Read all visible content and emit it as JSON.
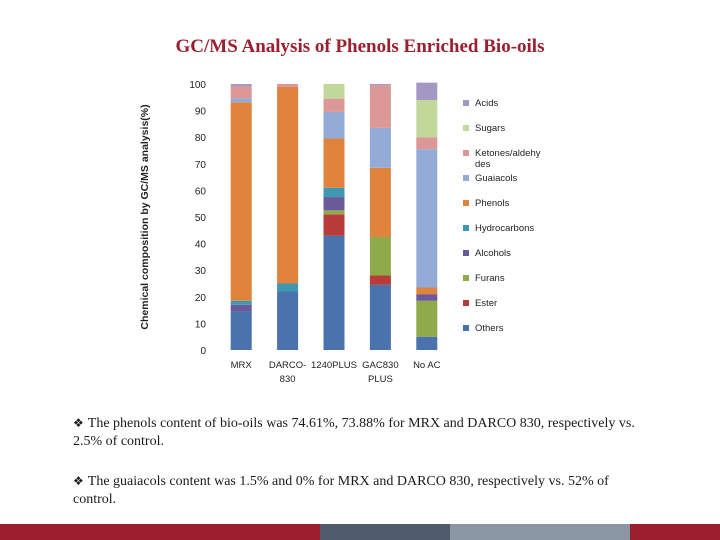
{
  "slide": {
    "title": "GC/MS Analysis of Phenols Enriched Bio-oils",
    "bullets": [
      "The phenols content of bio-oils was 74.61%, 73.88% for MRX and DARCO 830, respectively  vs. 2.5% of control.",
      "The guaiacols content was 1.5% and 0% for MRX and DARCO 830, respectively  vs. 52% of control."
    ],
    "bullet_symbol": "❖"
  },
  "chart_data": {
    "type": "bar",
    "stacked": true,
    "title": "",
    "xlabel": "",
    "ylabel": "Chemical composition by GC/MS analysis(%)",
    "ylim": [
      0,
      100
    ],
    "yticks": [
      0,
      10,
      20,
      30,
      40,
      50,
      60,
      70,
      80,
      90,
      100
    ],
    "categories": [
      "MRX",
      "DARCO- 830",
      "1240PLUS",
      "GAC830 PLUS",
      "No AC"
    ],
    "category_lines": [
      [
        "MRX"
      ],
      [
        "DARCO-",
        "830"
      ],
      [
        "1240PLUS"
      ],
      [
        "GAC830",
        "PLUS"
      ],
      [
        "No AC"
      ]
    ],
    "series": [
      {
        "name": "Others",
        "color": "#4a72ac",
        "values": [
          14.5,
          22,
          43,
          24.5,
          5
        ]
      },
      {
        "name": "Ester",
        "color": "#b73c3a",
        "values": [
          0,
          0,
          8,
          3.5,
          0
        ]
      },
      {
        "name": "Furans",
        "color": "#8faa48",
        "values": [
          0,
          0,
          1.5,
          14.5,
          13.5
        ]
      },
      {
        "name": "Alcohols",
        "color": "#6b5a9a",
        "values": [
          2.5,
          0,
          5,
          0,
          2.5
        ]
      },
      {
        "name": "Hydrocarbons",
        "color": "#3d98b4",
        "values": [
          1.5,
          3,
          3.5,
          0,
          0
        ]
      },
      {
        "name": "Phenols",
        "color": "#e0833d",
        "values": [
          74.6,
          73.9,
          18.5,
          26,
          2.5
        ]
      },
      {
        "name": "Guaiacols",
        "color": "#93abd6",
        "values": [
          1.5,
          0,
          10,
          15,
          52
        ]
      },
      {
        "name": "Ketones/aldehydes",
        "color": "#db9896",
        "values": [
          4.5,
          1.1,
          5,
          16,
          4.5
        ]
      },
      {
        "name": "Sugars",
        "color": "#c2d89b",
        "values": [
          0,
          0,
          5.5,
          0,
          14
        ]
      },
      {
        "name": "Acids",
        "color": "#a597c3",
        "values": [
          0.9,
          0,
          0,
          0.5,
          6.5
        ]
      }
    ],
    "legend": [
      {
        "label_lines": [
          "Acids"
        ],
        "color": "#a597c3"
      },
      {
        "label_lines": [
          "Sugars"
        ],
        "color": "#c2d89b"
      },
      {
        "label_lines": [
          "Ketones/aldehy",
          "des"
        ],
        "color": "#db9896"
      },
      {
        "label_lines": [
          "Guaiacols"
        ],
        "color": "#93abd6"
      },
      {
        "label_lines": [
          "Phenols"
        ],
        "color": "#e0833d"
      },
      {
        "label_lines": [
          "Hydrocarbons"
        ],
        "color": "#3d98b4"
      },
      {
        "label_lines": [
          "Alcohols"
        ],
        "color": "#6b5a9a"
      },
      {
        "label_lines": [
          "Furans"
        ],
        "color": "#8faa48"
      },
      {
        "label_lines": [
          "Ester"
        ],
        "color": "#b73c3a"
      },
      {
        "label_lines": [
          "Others"
        ],
        "color": "#4a72ac"
      }
    ],
    "legend_position": "right"
  },
  "footer_colors": [
    "#9b1f2e",
    "#9b1f2e",
    "#4d5b6b",
    "#8a96a3",
    "#9b1f2e"
  ]
}
